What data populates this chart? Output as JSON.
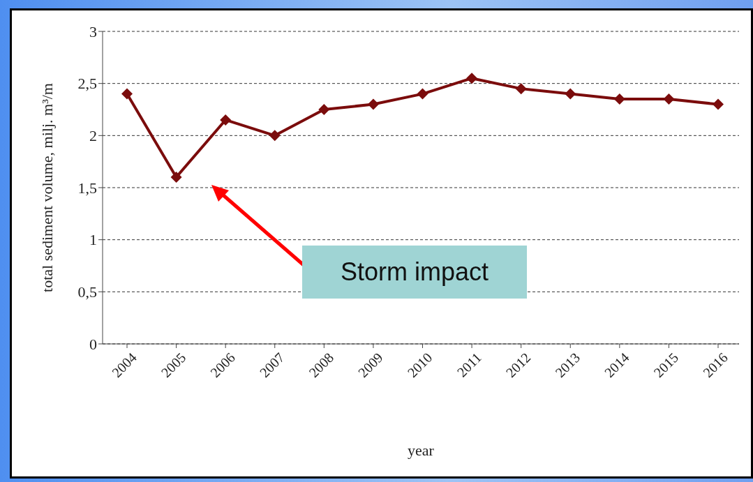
{
  "chart_data": {
    "type": "line",
    "xlabel": "year",
    "ylabel": "total sediment volume, milj. m³/m",
    "categories": [
      "2004",
      "2005",
      "2006",
      "2007",
      "2008",
      "2009",
      "2010",
      "2011",
      "2012",
      "2013",
      "2014",
      "2015",
      "2016"
    ],
    "series": [
      {
        "color": "#7b0c0c",
        "values": [
          2.4,
          1.6,
          2.15,
          2.0,
          2.25,
          2.3,
          2.4,
          2.55,
          2.45,
          2.4,
          2.35,
          2.35,
          2.3
        ]
      }
    ],
    "ylim": [
      0,
      3
    ],
    "yticks": [
      0,
      {
        "value": 0.5,
        "label": "0,5"
      },
      1,
      {
        "value": 1.5,
        "label": "1,5"
      },
      2,
      {
        "value": 2.5,
        "label": "2,5"
      },
      3
    ],
    "grid": "y",
    "marker": "diamond",
    "line_style": "solid",
    "annotations": [
      "Storm impact"
    ]
  }
}
